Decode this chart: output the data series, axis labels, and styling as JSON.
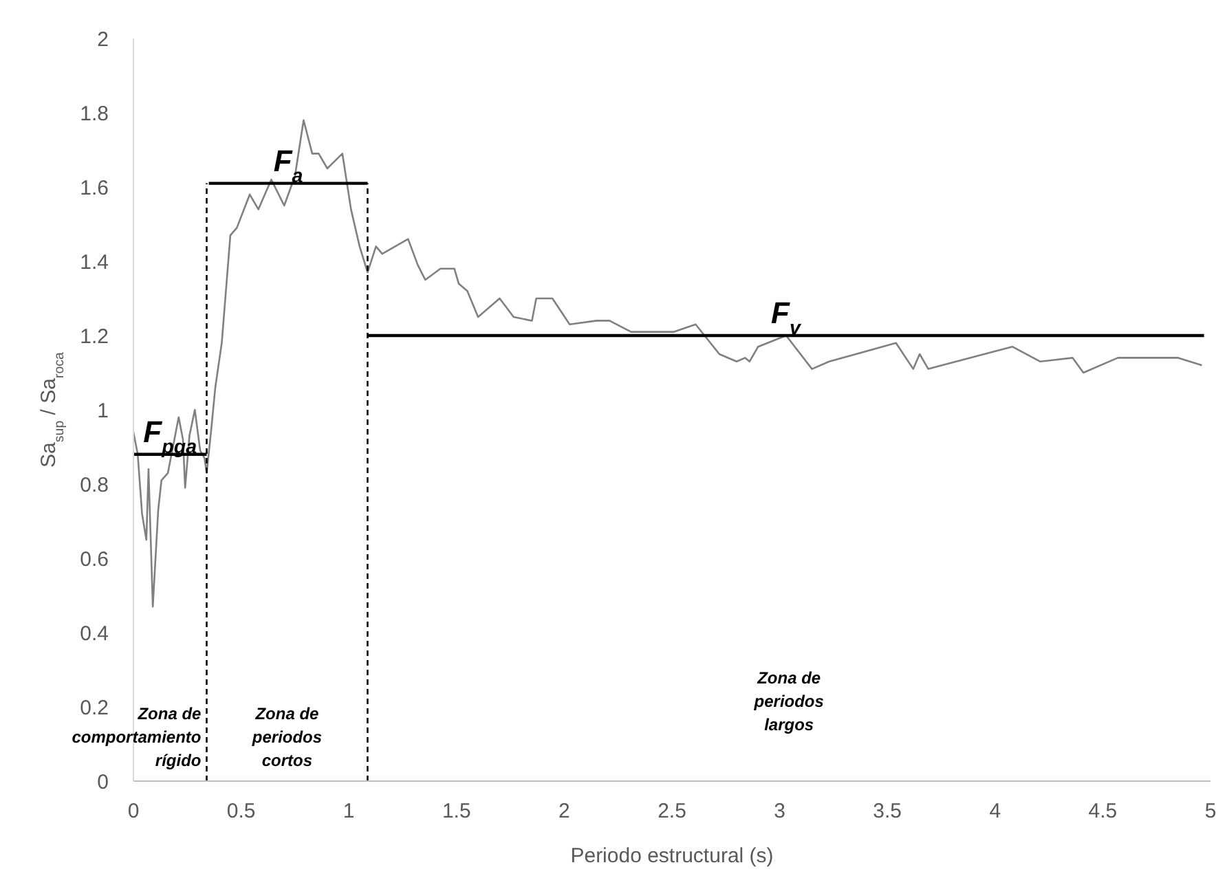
{
  "chart_data": {
    "type": "line",
    "xlabel": "Periodo estructural (s)",
    "ylabel": "Sa$_{sup}$ / Sa$_{roca}$",
    "xlim": [
      0,
      5
    ],
    "xticks": [
      0,
      0.5,
      1,
      1.5,
      2,
      2.5,
      3,
      3.5,
      4,
      4.5,
      5
    ],
    "ylim": [
      0,
      2
    ],
    "yticks": [
      0,
      0.2,
      0.4,
      0.6,
      0.8,
      1,
      1.2,
      1.4,
      1.6,
      1.8,
      2
    ],
    "grid": false,
    "marker": "none",
    "annotations": [
      "Zona de\ncomportamiento\nrígido",
      "Zona de\nperiodos\ncortos",
      "Zona de\nperiodos\nlargos"
    ],
    "series": [
      {
        "color": "#808080",
        "x": [
          0,
          0.02,
          0.04,
          0.06,
          0.07,
          0.09,
          0.115,
          0.13,
          0.16,
          0.19,
          0.21,
          0.23,
          0.24,
          0.26,
          0.285,
          0.31,
          0.33,
          0.34,
          0.36,
          0.38,
          0.41,
          0.45,
          0.48,
          0.54,
          0.58,
          0.64,
          0.7,
          0.75,
          0.79,
          0.83,
          0.86,
          0.9,
          0.97,
          1.01,
          1.05,
          1.087,
          1.126,
          1.155,
          1.275,
          1.32,
          1.355,
          1.425,
          1.49,
          1.51,
          1.55,
          1.6,
          1.7,
          1.765,
          1.85,
          1.87,
          1.945,
          2.025,
          2.15,
          2.21,
          2.31,
          2.51,
          2.61,
          2.72,
          2.8,
          2.84,
          2.86,
          2.9,
          3.03,
          3.15,
          3.23,
          3.54,
          3.62,
          3.65,
          3.69,
          4.08,
          4.21,
          4.36,
          4.41,
          4.57,
          4.74,
          4.85,
          4.96
        ],
        "values": [
          0.94,
          0.88,
          0.72,
          0.65,
          0.84,
          0.47,
          0.73,
          0.81,
          0.83,
          0.92,
          0.98,
          0.92,
          0.79,
          0.93,
          1.0,
          0.89,
          0.87,
          0.83,
          0.94,
          1.06,
          1.18,
          1.47,
          1.49,
          1.58,
          1.54,
          1.62,
          1.55,
          1.63,
          1.78,
          1.69,
          1.69,
          1.65,
          1.69,
          1.54,
          1.44,
          1.37,
          1.44,
          1.42,
          1.46,
          1.39,
          1.35,
          1.38,
          1.38,
          1.34,
          1.32,
          1.25,
          1.3,
          1.25,
          1.24,
          1.3,
          1.3,
          1.23,
          1.24,
          1.24,
          1.21,
          1.21,
          1.23,
          1.15,
          1.13,
          1.14,
          1.13,
          1.17,
          1.2,
          1.11,
          1.13,
          1.18,
          1.11,
          1.15,
          1.11,
          1.17,
          1.13,
          1.14,
          1.1,
          1.14,
          1.14,
          1.14,
          1.12
        ]
      },
      {
        "name": "F$_{pga}$",
        "color": "#000000",
        "x": [
          0,
          0.34
        ],
        "values": [
          0.88,
          0.88
        ]
      },
      {
        "name": "F$_{a}$",
        "color": "#000000",
        "x": [
          0.35,
          1.087
        ],
        "values": [
          1.61,
          1.61
        ]
      },
      {
        "name": "F$_{v}$",
        "color": "#000000",
        "x": [
          1.087,
          4.97
        ],
        "values": [
          1.2,
          1.2
        ]
      },
      {
        "color": "#000000",
        "line_style": "dashed",
        "x": [
          0.34,
          0.34
        ],
        "values": [
          0,
          1.61
        ]
      },
      {
        "color": "#000000",
        "line_style": "dashed",
        "x": [
          1.087,
          1.087
        ],
        "values": [
          0,
          1.61
        ]
      }
    ]
  }
}
